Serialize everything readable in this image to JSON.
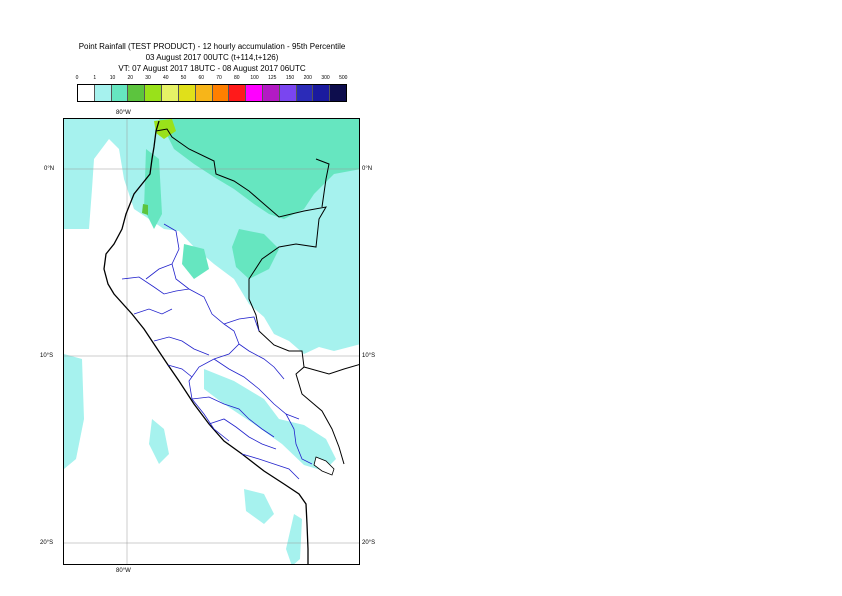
{
  "title": {
    "line1": "Point Rainfall (TEST PRODUCT) - 12 hourly accumulation - 95th Percentile",
    "line2": "03 August 2017 00UTC (t+114,t+126)",
    "line3": "VT: 07 August 2017 18UTC - 08 August 2017 06UTC"
  },
  "legend": {
    "labels": [
      "0",
      "1",
      "10",
      "20",
      "30",
      "40",
      "50",
      "60",
      "70",
      "80",
      "100",
      "125",
      "150",
      "200",
      "300",
      "500"
    ],
    "colors": [
      "#ffffff",
      "#a6f2ee",
      "#66e6c0",
      "#5cc43e",
      "#99e11a",
      "#e6f266",
      "#e0e01a",
      "#f7b519",
      "#ff7f00",
      "#ff1a1a",
      "#ff00ff",
      "#b31ac4",
      "#7a45f0",
      "#2b2bb8",
      "#1a1a9e",
      "#0d0d4d"
    ]
  },
  "map": {
    "lat_labels": [
      "0°N",
      "10°S",
      "20°S"
    ],
    "lon_label": "80°W",
    "region": "Peru and western South America"
  }
}
